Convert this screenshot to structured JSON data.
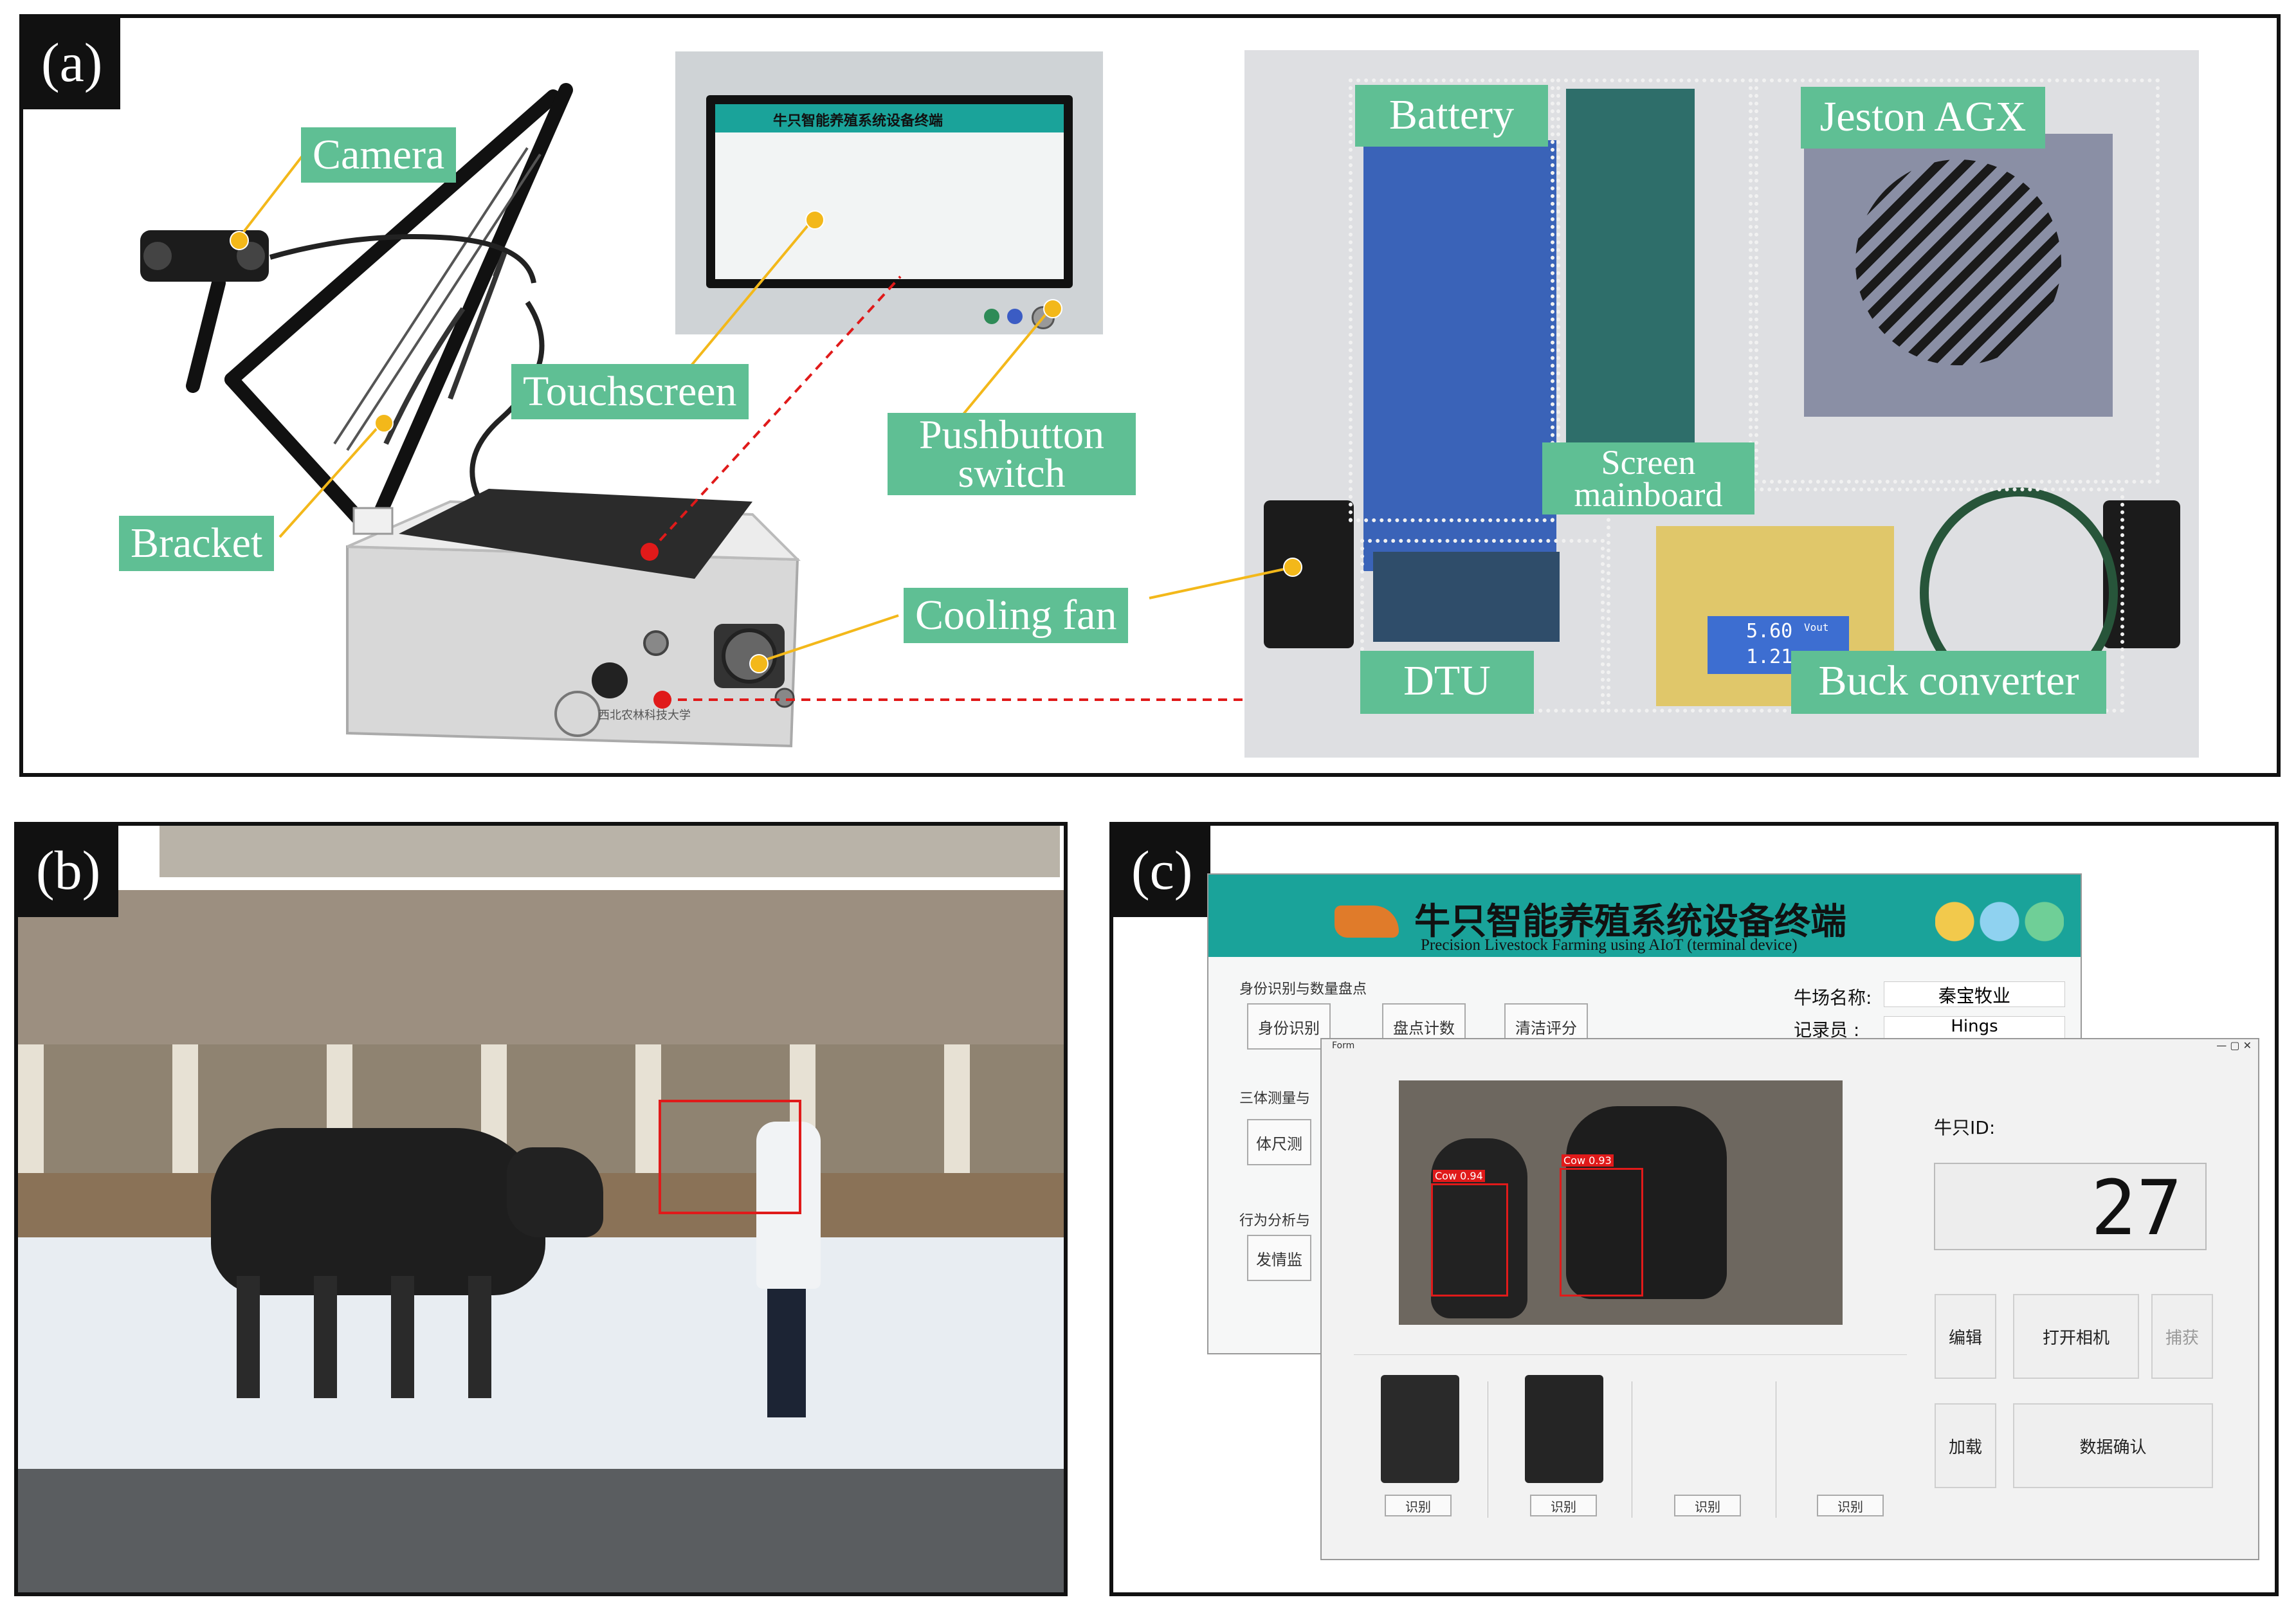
{
  "panels": {
    "a": {
      "label": "(a)"
    },
    "b": {
      "label": "(b)"
    },
    "c": {
      "label": "(c)"
    }
  },
  "device_callouts": {
    "camera": "Camera",
    "touchscreen": "Touchscreen",
    "bracket": "Bracket",
    "pushbutton_line1": "Pushbutton",
    "pushbutton_line2": "switch",
    "cooling_fan": "Cooling fan"
  },
  "interior_labels": {
    "battery": "Battery",
    "jetson": "Jeston AGX",
    "screen_mainboard_line1": "Screen",
    "screen_mainboard_line2": "mainboard",
    "dtu": "DTU",
    "buck_converter": "Buck converter"
  },
  "touchscreen_ui": {
    "title": "牛只智能养殖系统设备终端"
  },
  "device_box": {
    "brand_text": "西北农林科技大学"
  },
  "buck_display": {
    "top": "5.60",
    "bottom": "1.21",
    "unit": "Vout"
  },
  "app_back": {
    "title": "牛只智能养殖系统设备终端",
    "subtitle": "Precision Livestock Farming using AIoT (terminal device)",
    "section1": "身份识别与数量盘点",
    "section2": "三体测量与",
    "section3": "行为分析与",
    "btn_identify": "身份识别",
    "btn_count": "盘点计数",
    "btn_score": "清洁评分",
    "btn_body": "体尺测",
    "btn_estrus": "发情监",
    "farm_label": "牛场名称:",
    "farm_value": "秦宝牧业",
    "recorder_label": "记录员  :",
    "recorder_value": "Hings"
  },
  "app_front": {
    "window_title": "Form",
    "cow_id_label": "牛只ID:",
    "cow_id_value": "27",
    "det1": "Cow 0.94",
    "det2": "Cow 0.93",
    "btn_edit": "编辑",
    "btn_open_camera": "打开相机",
    "btn_capture": "捕获",
    "btn_load": "加载",
    "btn_confirm": "数据确认",
    "recognize_buttons": [
      "识别",
      "识别",
      "识别",
      "识别"
    ]
  },
  "colors": {
    "callout": "#5fbf94",
    "leader": "#f3b81a",
    "link": "#e01a1a",
    "app_header": "#1aa39a"
  }
}
